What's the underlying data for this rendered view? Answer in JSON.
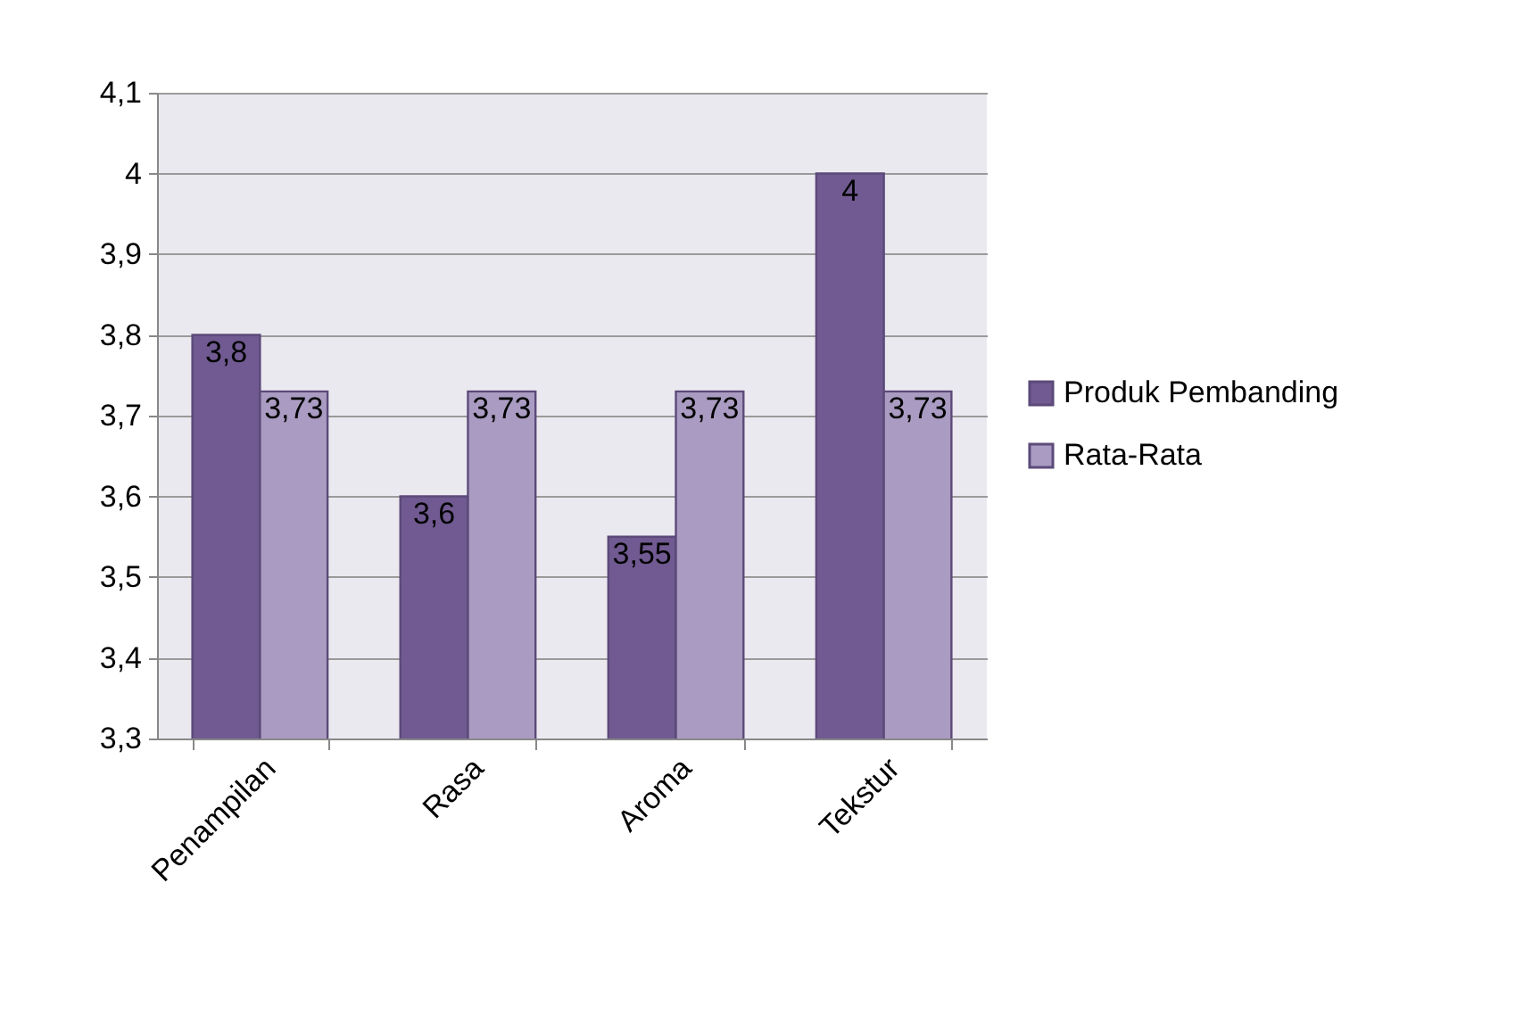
{
  "chart_data": {
    "type": "bar",
    "categories": [
      "Penampilan",
      "Rasa",
      "Aroma",
      "Tekstur"
    ],
    "series": [
      {
        "name": "Produk Pembanding",
        "color": "#705a91",
        "values": [
          3.8,
          3.6,
          3.55,
          4
        ],
        "value_labels": [
          "3,8",
          "3,6",
          "3,55",
          "4"
        ]
      },
      {
        "name": "Rata-Rata",
        "color": "#a99bc1",
        "values": [
          3.73,
          3.73,
          3.73,
          3.73
        ],
        "value_labels": [
          "3,73",
          "3,73",
          "3,73",
          "3,73"
        ]
      }
    ],
    "ylim": [
      3.3,
      4.1
    ],
    "yticks": [
      {
        "value": 3.3,
        "label": "3,3"
      },
      {
        "value": 3.4,
        "label": "3,4"
      },
      {
        "value": 3.5,
        "label": "3,5"
      },
      {
        "value": 3.6,
        "label": "3,6"
      },
      {
        "value": 3.7,
        "label": "3,7"
      },
      {
        "value": 3.8,
        "label": "3,8"
      },
      {
        "value": 3.9,
        "label": "3,9"
      },
      {
        "value": 4,
        "label": "4"
      },
      {
        "value": 4.1,
        "label": "4,1"
      }
    ],
    "grid": "y",
    "legend": "right"
  }
}
